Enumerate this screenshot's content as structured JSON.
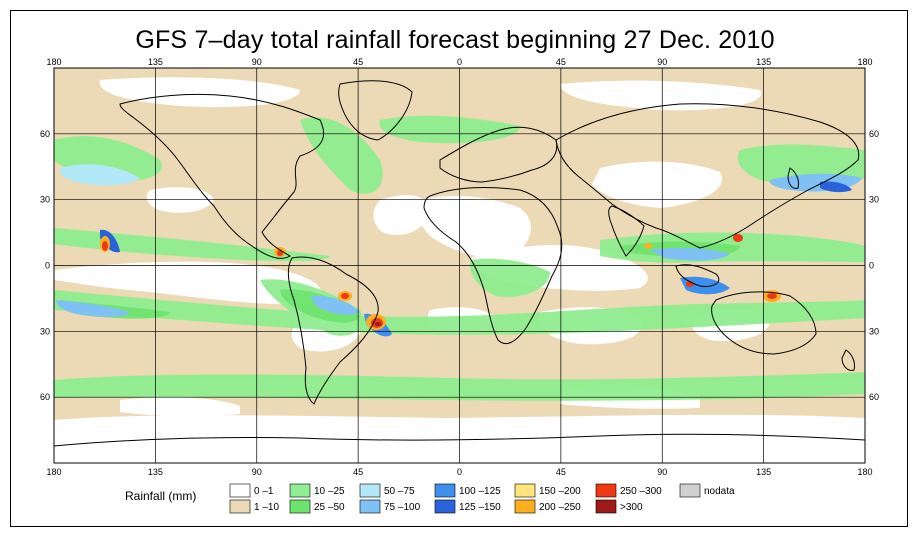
{
  "title": "GFS 7–day total rainfall forecast beginning 27 Dec. 2010",
  "projection": "equirectangular",
  "extent": {
    "lon_min": -180,
    "lon_max": 180,
    "lat_min": -90,
    "lat_max": 90
  },
  "longitude_ticks": [
    {
      "value": -180,
      "label": "180"
    },
    {
      "value": -135,
      "label": "135"
    },
    {
      "value": -90,
      "label": "90"
    },
    {
      "value": -45,
      "label": "45"
    },
    {
      "value": 0,
      "label": "0"
    },
    {
      "value": 45,
      "label": "45"
    },
    {
      "value": 90,
      "label": "90"
    },
    {
      "value": 135,
      "label": "135"
    },
    {
      "value": 180,
      "label": "180"
    }
  ],
  "latitude_ticks": [
    {
      "value": 60,
      "label": "60"
    },
    {
      "value": 30,
      "label": "30"
    },
    {
      "value": 0,
      "label": "0"
    },
    {
      "value": -30,
      "label": "30"
    },
    {
      "value": -60,
      "label": "60"
    }
  ],
  "grid": true,
  "colors": {
    "land_outline": "#000000",
    "grid": "#000000",
    "background": "#ffffff"
  },
  "legend": {
    "title": "Rainfall (mm)",
    "entries": [
      {
        "label": "0 –1",
        "color": "#ffffff"
      },
      {
        "label": "1 –10",
        "color": "#ecd9b6"
      },
      {
        "label": "10 –25",
        "color": "#90ee90"
      },
      {
        "label": "25 –50",
        "color": "#6de36d"
      },
      {
        "label": "50 –75",
        "color": "#b2e8f7"
      },
      {
        "label": "75 –100",
        "color": "#7fc0f5"
      },
      {
        "label": "100 –125",
        "color": "#3c8fec"
      },
      {
        "label": "125 –150",
        "color": "#2a62db"
      },
      {
        "label": "150 –200",
        "color": "#ffe57a"
      },
      {
        "label": "200 –250",
        "color": "#ffae1f"
      },
      {
        "label": "250 –300",
        "color": "#ee3a12"
      },
      {
        "label": ">300",
        "color": "#a01a1a"
      },
      {
        "label": "nodata",
        "color": "#d0d0d0"
      }
    ]
  }
}
